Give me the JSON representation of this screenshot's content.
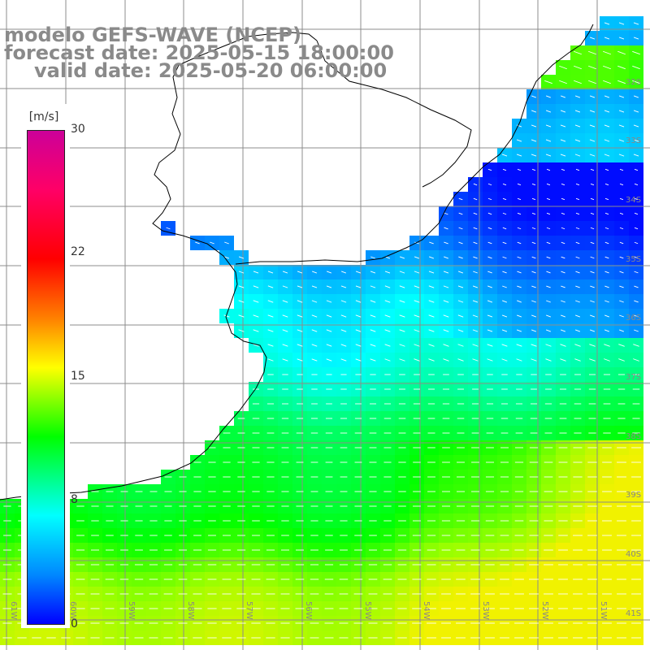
{
  "title": {
    "line1": "modelo GEFS-WAVE (NCEP)",
    "line2": "forecast date: 2025-05-15 18:00:00",
    "line3": "valid date: 2025-05-20 06:00:00"
  },
  "colorbar": {
    "units": "[m/s]",
    "ticks": [
      "30",
      "22",
      "15",
      "8",
      "0"
    ],
    "min": 0,
    "max": 30,
    "colors": [
      "#0000ff",
      "#0088ff",
      "#00ffff",
      "#00ff00",
      "#ffff00",
      "#ff0000",
      "#cc0099"
    ]
  },
  "lat_labels": [
    "32S",
    "33S",
    "34S",
    "35S",
    "36S",
    "37S",
    "38S",
    "39S",
    "40S",
    "41S"
  ],
  "lon_labels": [
    "61W",
    "60W",
    "59W",
    "58W",
    "57W",
    "56W",
    "55W",
    "54W",
    "53W",
    "52W",
    "51W"
  ],
  "map": {
    "variable": "wind speed and direction",
    "land_color": "#ffffff",
    "coast_color": "#000000",
    "grid_color": "#8c8c8c",
    "arrow_color": "#ffffff"
  }
}
